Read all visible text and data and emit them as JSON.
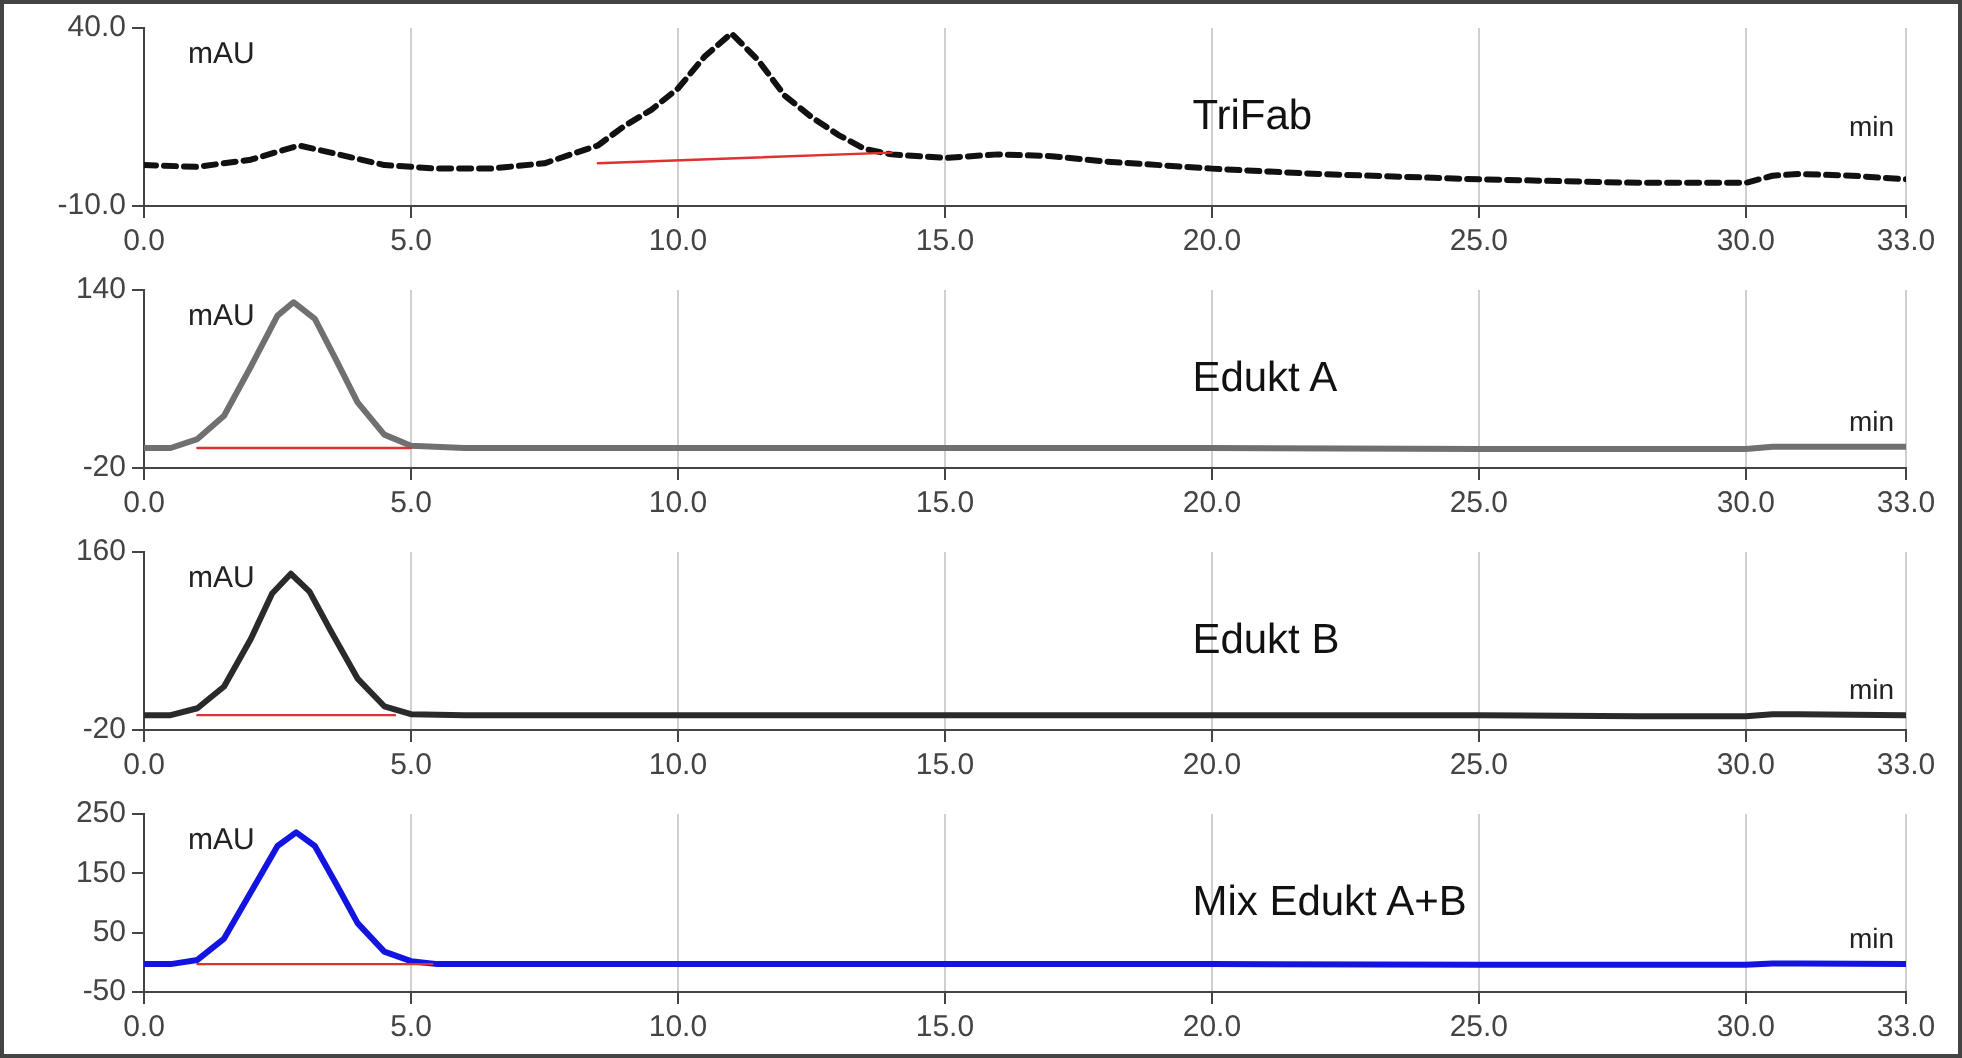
{
  "chart_data": [
    {
      "type": "line",
      "ylabel": "mAU",
      "xlabel": "min",
      "xlim": [
        0,
        33
      ],
      "xticks": [
        {
          "value": 0,
          "label": "0.0"
        },
        {
          "value": 5,
          "label": "5.0"
        },
        {
          "value": 10,
          "label": "10.0"
        },
        {
          "value": 15,
          "label": "15.0"
        },
        {
          "value": 20,
          "label": "20.0"
        },
        {
          "value": 25,
          "label": "25.0"
        },
        {
          "value": 30,
          "label": "30.0"
        },
        {
          "value": 33,
          "label": "33.0"
        }
      ],
      "ylim": [
        -10,
        40
      ],
      "yticks": [
        {
          "value": -10,
          "label": "-10.0"
        },
        {
          "value": 40,
          "label": "40.0"
        }
      ],
      "grid": "x",
      "legend": false,
      "marker": "none",
      "x": [
        0,
        1,
        2,
        2.9,
        3.5,
        4.5,
        5.5,
        6.5,
        7.5,
        8.5,
        9,
        9.5,
        10,
        10.5,
        11,
        11.5,
        12,
        12.5,
        13,
        13.5,
        14,
        15,
        16,
        17,
        18,
        20,
        22,
        25,
        28,
        30,
        30.5,
        31,
        32,
        33
      ],
      "series": [
        {
          "name": "TriFab",
          "color": "#111111",
          "line_style": "dashed",
          "values": [
            1.5,
            1,
            3,
            7,
            5,
            1.5,
            0.5,
            0.5,
            2,
            7,
            12.5,
            17,
            23,
            32,
            38.5,
            31,
            21,
            15,
            10,
            6,
            4.5,
            3.5,
            4.5,
            4,
            2.5,
            0.5,
            -1,
            -2.5,
            -3.5,
            -3.5,
            -1.5,
            -1,
            -1.5,
            -2.5
          ]
        },
        {
          "type": "line",
          "color": "#e03030",
          "line_style": "solid",
          "x": [
            8.5,
            14
          ],
          "values": [
            2,
            5
          ]
        }
      ]
    },
    {
      "type": "line",
      "ylabel": "mAU",
      "xlabel": "min",
      "xlim": [
        0,
        33
      ],
      "xticks": [
        {
          "value": 0,
          "label": "0.0"
        },
        {
          "value": 5,
          "label": "5.0"
        },
        {
          "value": 10,
          "label": "10.0"
        },
        {
          "value": 15,
          "label": "15.0"
        },
        {
          "value": 20,
          "label": "20.0"
        },
        {
          "value": 25,
          "label": "25.0"
        },
        {
          "value": 30,
          "label": "30.0"
        },
        {
          "value": 33,
          "label": "33.0"
        }
      ],
      "ylim": [
        -20,
        140
      ],
      "yticks": [
        -20,
        140
      ],
      "grid": "x",
      "legend": false,
      "marker": "none",
      "x": [
        0,
        0.5,
        1,
        1.5,
        2,
        2.5,
        2.8,
        3.2,
        3.6,
        4,
        4.5,
        5,
        6,
        10,
        15,
        20,
        25,
        30,
        30.5,
        31,
        33
      ],
      "series": [
        {
          "name": "Edukt A",
          "color": "#707070",
          "line_style": "solid",
          "values": [
            -2,
            -2,
            6,
            27,
            71,
            117,
            129,
            114,
            77,
            39,
            10,
            0,
            -2,
            -2,
            -2,
            -2,
            -3,
            -3,
            -1,
            -1,
            -1
          ]
        },
        {
          "type": "line",
          "color": "#e03030",
          "line_style": "solid",
          "x": [
            1,
            5
          ],
          "values": [
            -2,
            -2
          ]
        }
      ]
    },
    {
      "type": "line",
      "ylabel": "mAU",
      "xlabel": "min",
      "xlim": [
        0,
        33
      ],
      "xticks": [
        {
          "value": 0,
          "label": "0.0"
        },
        {
          "value": 5,
          "label": "5.0"
        },
        {
          "value": 10,
          "label": "10.0"
        },
        {
          "value": 15,
          "label": "15.0"
        },
        {
          "value": 20,
          "label": "20.0"
        },
        {
          "value": 25,
          "label": "25.0"
        },
        {
          "value": 30,
          "label": "30.0"
        },
        {
          "value": 33,
          "label": "33.0"
        }
      ],
      "ylim": [
        -20,
        160
      ],
      "yticks": [
        -20,
        160
      ],
      "grid": "x",
      "legend": false,
      "marker": "none",
      "x": [
        0,
        0.5,
        1,
        1.5,
        2,
        2.4,
        2.75,
        3.1,
        3.5,
        4,
        4.5,
        5,
        6,
        10,
        15,
        20,
        25,
        28,
        30,
        30.5,
        31,
        33
      ],
      "series": [
        {
          "name": "Edukt B",
          "color": "#2a2a2a",
          "line_style": "solid",
          "values": [
            -5,
            -5,
            2,
            24,
            72,
            118,
            138,
            120,
            80,
            32,
            4,
            -4,
            -5,
            -5,
            -5,
            -5,
            -5,
            -6,
            -6,
            -4,
            -4,
            -5
          ]
        },
        {
          "type": "line",
          "color": "#e03030",
          "line_style": "solid",
          "x": [
            1,
            4.7
          ],
          "values": [
            -5,
            -5
          ]
        }
      ]
    },
    {
      "type": "line",
      "ylabel": "mAU",
      "xlabel": "min",
      "xlim": [
        0,
        33
      ],
      "xticks": [
        {
          "value": 0,
          "label": "0.0"
        },
        {
          "value": 5,
          "label": "5.0"
        },
        {
          "value": 10,
          "label": "10.0"
        },
        {
          "value": 15,
          "label": "15.0"
        },
        {
          "value": 20,
          "label": "20.0"
        },
        {
          "value": 25,
          "label": "25.0"
        },
        {
          "value": 30,
          "label": "30.0"
        },
        {
          "value": 33,
          "label": "33.0"
        }
      ],
      "ylim": [
        -50,
        250
      ],
      "yticks": [
        -50,
        50,
        150,
        250
      ],
      "grid": "x",
      "legend": false,
      "marker": "none",
      "x": [
        0,
        0.5,
        1,
        1.5,
        2,
        2.5,
        2.85,
        3.2,
        3.6,
        4,
        4.5,
        5,
        5.5,
        6,
        10,
        15,
        20,
        25,
        30,
        30.5,
        31,
        33
      ],
      "series": [
        {
          "name": "Mix Edukt A+B",
          "color": "#1414e0",
          "line_style": "solid",
          "values": [
            -3,
            -3,
            4,
            40,
            118,
            196,
            219,
            196,
            132,
            66,
            18,
            2,
            -3,
            -3,
            -3,
            -3,
            -3,
            -4,
            -4,
            -2,
            -2,
            -3
          ]
        },
        {
          "type": "line",
          "color": "#e03030",
          "line_style": "solid",
          "x": [
            1,
            5.4
          ],
          "values": [
            -3,
            -3
          ]
        }
      ]
    }
  ]
}
